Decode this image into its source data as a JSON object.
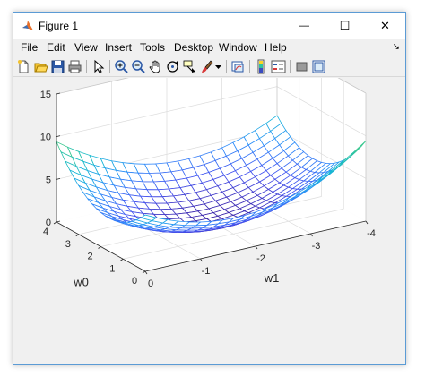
{
  "window": {
    "title": "Figure 1",
    "minimize_glyph": "—",
    "maximize_glyph": "☐",
    "close_glyph": "✕"
  },
  "menu": {
    "items": [
      {
        "label": "File"
      },
      {
        "label": "Edit"
      },
      {
        "label": "View"
      },
      {
        "label": "Insert"
      },
      {
        "label": "Tools"
      },
      {
        "label": "Desktop"
      },
      {
        "label": "Window"
      },
      {
        "label": "Help"
      }
    ],
    "dock_glyph": "↘"
  },
  "toolbar": {
    "icons": [
      "new-figure-icon",
      "open-file-icon",
      "save-icon",
      "print-icon",
      "edit-plot-icon",
      "zoom-in-icon",
      "zoom-out-icon",
      "pan-icon",
      "rotate-3d-icon",
      "data-cursor-icon",
      "brush-icon",
      "brush-dropdown-icon",
      "link-plot-icon",
      "colorbar-icon",
      "legend-icon",
      "hide-plot-tools-icon",
      "show-plot-tools-icon"
    ]
  },
  "chart_data": {
    "type": "surface",
    "title": "",
    "xlabel": "w1",
    "ylabel": "w0",
    "zlabel": "",
    "x_ticks": [
      "0",
      "-1",
      "-2",
      "-3",
      "-4"
    ],
    "y_ticks": [
      "0",
      "1",
      "2",
      "3",
      "4"
    ],
    "z_ticks": [
      "0",
      "5",
      "10",
      "15"
    ],
    "xlim": [
      -4,
      0
    ],
    "ylim": [
      0,
      4
    ],
    "zlim": [
      0,
      15
    ],
    "grid": true,
    "colormap": "parula",
    "mesh_lines": 21,
    "surface": "z = (w0 - 2)^2 + (w1 + 2)^2 + 0.3*(w0 - 2)*(w1 + 2) approximately; minimum near 0 at w0=2, w1=-2; corners reach about 13.5 to 14"
  }
}
